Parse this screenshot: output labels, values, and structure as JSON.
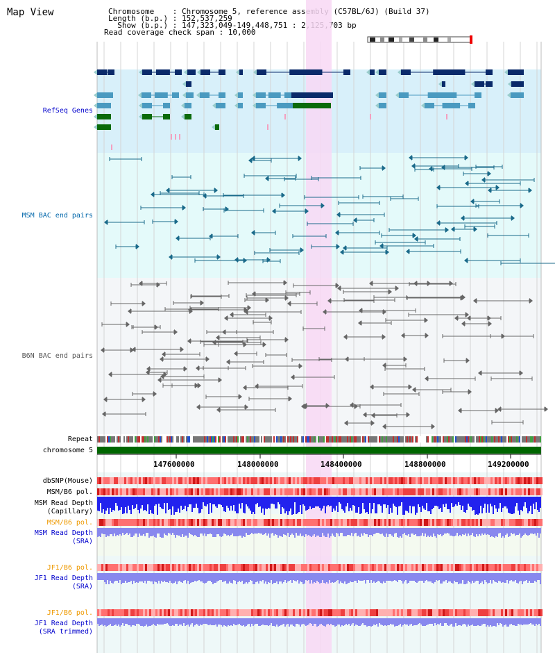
{
  "app": {
    "title": "Map View"
  },
  "info": {
    "chromosome_line": "Chromosome    : Chromosome 5, reference assembly (C57BL/6J) (Build 37)",
    "length_line": "Length (b.p.) : 152,537,259",
    "show_line": "  Show (b.p.) : 147,323,049-149,448,751 : 2,125,703 bp",
    "span_line": "Read coverage check span : 10,000"
  },
  "tracks": {
    "refseq": {
      "label": "RefSeq Genes",
      "color": "#0000cc"
    },
    "msm_bac": {
      "label": "MSM BAC end pairs",
      "color": "#0066aa"
    },
    "b6n_bac": {
      "label": "B6N BAC end pairs",
      "color": "#555555"
    },
    "repeat": {
      "label": "Repeat"
    },
    "chromosome": {
      "label": "chromosome 5",
      "color": "#006600"
    },
    "dbsnp": {
      "label": "dbSNP(Mouse)"
    },
    "msm_b6_pol_1": {
      "label": "MSM/B6 pol."
    },
    "msm_read_depth_cap": {
      "label_1": "MSM Read Depth",
      "label_2": "(Capillary)"
    },
    "msm_b6_pol_2": {
      "label": "MSM/B6 pol.",
      "color": "#ee9900"
    },
    "msm_read_depth_sra": {
      "label_1": "MSM Read Depth",
      "label_2": "(SRA)",
      "color": "#0000cc"
    },
    "jf1_b6_pol_1": {
      "label": "JF1/B6 pol.",
      "color": "#ee9900"
    },
    "jf1_read_depth_sra": {
      "label_1": "JF1 Read Depth",
      "label_2": "(SRA)",
      "color": "#0000cc"
    },
    "jf1_b6_pol_2": {
      "label": "JF1/B6 pol.",
      "color": "#ee9900"
    },
    "jf1_read_depth_trim": {
      "label_1": "JF1 Read Depth",
      "label_2": "(SRA trimmed)",
      "color": "#0000cc"
    }
  },
  "axis": {
    "ticks": [
      "147600000",
      "148000000",
      "148400000",
      "148800000",
      "149200000"
    ]
  },
  "colors": {
    "highlight": "#f8d8f4",
    "refseq_bg": "#d8f0fa",
    "msm_bg": "#e4fafa",
    "b6n_bg": "#f4f6f8",
    "gene_dark": "#0a2a6a",
    "gene_mid": "#4a9ac0",
    "gene_green": "#0a6a0a",
    "snp": "#ee4444",
    "depth_dark": "#2222ee",
    "depth_light": "#8888ee"
  }
}
